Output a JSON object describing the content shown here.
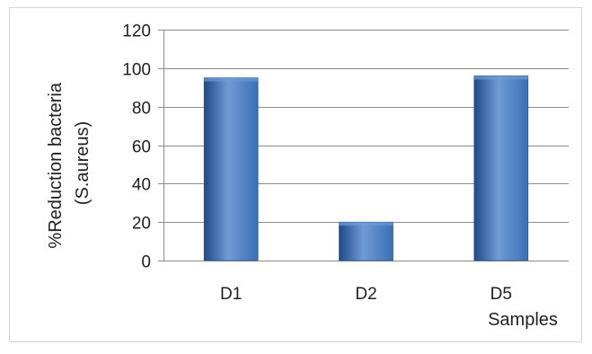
{
  "chart_data": {
    "type": "bar",
    "categories": [
      "D1",
      "D2",
      "D5"
    ],
    "values": [
      95,
      20,
      96
    ],
    "ylim": [
      0,
      120
    ],
    "yticks": [
      0,
      20,
      40,
      60,
      80,
      100,
      120
    ],
    "xlabel": "Samples",
    "ylabel_lines": [
      "%Reduction bacteria",
      "(S.aureus)"
    ],
    "grid": true,
    "legend": "none",
    "bar_color": "#3a6fb5",
    "bar_color_light": "#6f9bd6",
    "bar_color_dark": "#1f4a85"
  }
}
